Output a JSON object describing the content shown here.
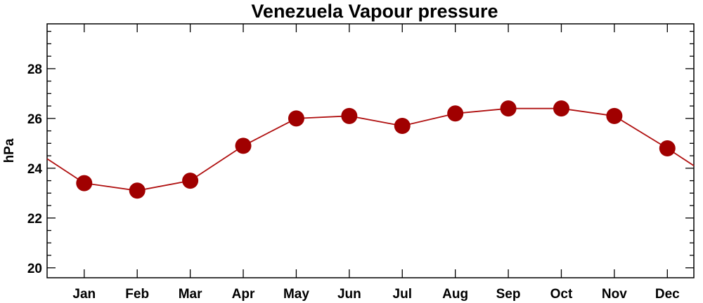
{
  "chart_data": {
    "type": "line",
    "title": "Venezuela Vapour pressure",
    "xlabel": "",
    "ylabel": "hPa",
    "categories": [
      "Jan",
      "Feb",
      "Mar",
      "Apr",
      "May",
      "Jun",
      "Jul",
      "Aug",
      "Sep",
      "Oct",
      "Nov",
      "Dec"
    ],
    "series": [
      {
        "values": [
          23.4,
          23.1,
          23.5,
          24.9,
          26.0,
          26.1,
          25.7,
          26.2,
          26.4,
          26.4,
          26.1,
          24.8
        ]
      }
    ],
    "ylim": [
      19.6,
      29.8
    ],
    "yticks": [
      20,
      22,
      24,
      26,
      28
    ],
    "grid": false,
    "colors": {
      "line": "#b01010",
      "marker": "#a00000",
      "axis": "#000000"
    }
  }
}
